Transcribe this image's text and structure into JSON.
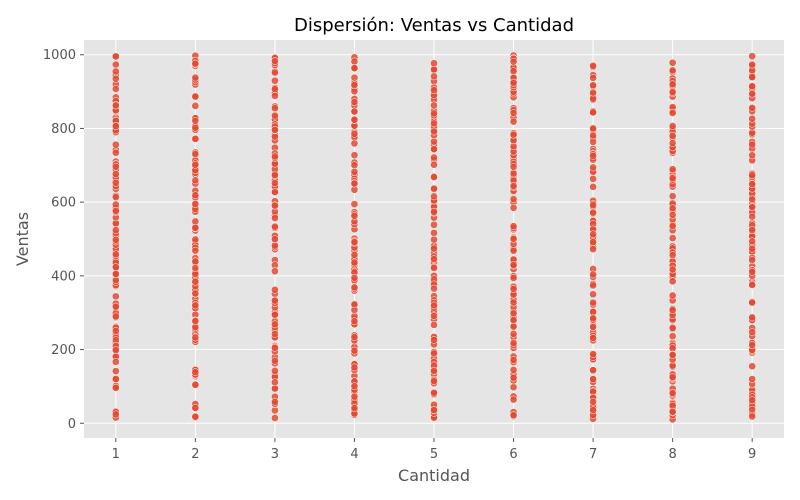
{
  "chart_data": {
    "type": "scatter",
    "title": "Dispersión: Ventas vs Cantidad",
    "xlabel": "Cantidad",
    "ylabel": "Ventas",
    "xlim": [
      0.6,
      9.4
    ],
    "ylim": [
      -40,
      1040
    ],
    "x_ticks": [
      1,
      2,
      3,
      4,
      5,
      6,
      7,
      8,
      9
    ],
    "y_ticks": [
      0,
      200,
      400,
      600,
      800,
      1000
    ],
    "grid": true,
    "colors": {
      "background": "#e5e5e5",
      "point": "#e24a33",
      "grid": "#ffffff"
    },
    "series": [
      {
        "name": "Ventas",
        "description": "~100 points per quantity value, distributed across the range 10 to 1000",
        "x_values": [
          1,
          2,
          3,
          4,
          5,
          6,
          7,
          8,
          9
        ],
        "y_min": 10,
        "y_max": 1000,
        "points_per_x": 110
      }
    ]
  }
}
